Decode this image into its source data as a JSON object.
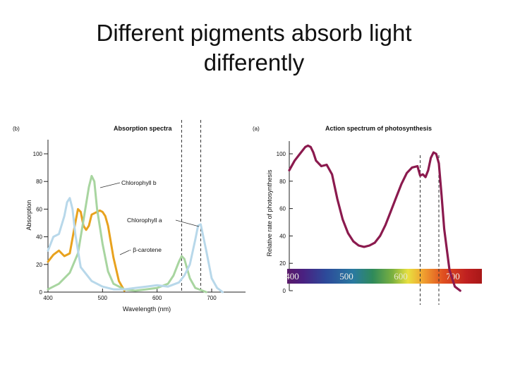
{
  "slide": {
    "title_line1": "Different pigments absorb light",
    "title_line2": "differently"
  },
  "colors": {
    "chl_b": "#a8d5a0",
    "chl_a": "#b8d8ea",
    "carotene": "#e8a21e",
    "action": "#8b1a4e",
    "axis": "#222222",
    "dashed": "#333333"
  },
  "chart_data": [
    {
      "type": "line",
      "panel_label": "(b)",
      "title": "Absorption spectra",
      "xlabel": "Wavelength (nm)",
      "ylabel": "Absorption",
      "xlim": [
        400,
        750
      ],
      "ylim": [
        0,
        100
      ],
      "xticks": [
        400,
        500,
        600,
        700
      ],
      "yticks": [
        0,
        20,
        40,
        60,
        80,
        100
      ],
      "grid": false,
      "dashed_vertical_lines": [
        645,
        680
      ],
      "series": [
        {
          "name": "Chlorophyll b",
          "color": "#a8d5a0",
          "x": [
            400,
            420,
            440,
            455,
            465,
            475,
            480,
            485,
            490,
            500,
            510,
            520,
            540,
            560,
            580,
            600,
            620,
            630,
            640,
            645,
            650,
            660,
            670,
            690
          ],
          "y": [
            2,
            6,
            14,
            28,
            52,
            76,
            84,
            80,
            60,
            35,
            15,
            6,
            2,
            1,
            2,
            3,
            6,
            12,
            22,
            26,
            24,
            10,
            3,
            0
          ]
        },
        {
          "name": "Chlorophyll a",
          "color": "#b8d8ea",
          "x": [
            400,
            410,
            420,
            430,
            435,
            440,
            445,
            450,
            460,
            480,
            500,
            520,
            540,
            560,
            580,
            600,
            620,
            640,
            650,
            660,
            670,
            675,
            680,
            690,
            700,
            710,
            720
          ],
          "y": [
            30,
            40,
            42,
            55,
            65,
            68,
            60,
            42,
            18,
            8,
            4,
            2,
            2,
            3,
            4,
            5,
            4,
            7,
            12,
            20,
            38,
            48,
            49,
            30,
            10,
            3,
            0
          ]
        },
        {
          "name": "β-carotene",
          "color": "#e8a21e",
          "x": [
            400,
            410,
            420,
            430,
            440,
            450,
            455,
            460,
            465,
            470,
            475,
            480,
            490,
            495,
            500,
            505,
            510,
            520,
            530,
            540
          ],
          "y": [
            22,
            27,
            30,
            26,
            28,
            50,
            60,
            58,
            48,
            45,
            48,
            56,
            58,
            59,
            58,
            55,
            48,
            25,
            8,
            1
          ]
        }
      ],
      "annotations": [
        {
          "text": "Chlorophyll b",
          "x": 528,
          "y": 80
        },
        {
          "text": "Chlorophyll a",
          "x": 542,
          "y": 52
        },
        {
          "text": "- β-carotene",
          "x": 537,
          "y": 30
        }
      ]
    },
    {
      "type": "line",
      "panel_label": "(a)",
      "title": "Action spectrum of photosynthesis",
      "xlabel": "",
      "ylabel": "Relative rate of photosynthesis",
      "xlim": [
        400,
        760
      ],
      "ylim": [
        0,
        100
      ],
      "yticks": [
        0,
        20,
        40,
        60,
        80,
        100
      ],
      "spectrum_bar_labels": [
        "400",
        "500",
        "600",
        "700"
      ],
      "dashed_vertical_lines": [
        645,
        680
      ],
      "grid": false,
      "series": [
        {
          "name": "",
          "color": "#8b1a4e",
          "x": [
            400,
            410,
            420,
            430,
            435,
            440,
            445,
            450,
            460,
            470,
            480,
            490,
            500,
            510,
            520,
            530,
            540,
            550,
            560,
            570,
            580,
            590,
            600,
            610,
            620,
            630,
            640,
            645,
            650,
            655,
            660,
            665,
            670,
            675,
            680,
            685,
            690,
            700,
            710,
            720
          ],
          "y": [
            88,
            95,
            100,
            105,
            106,
            105,
            101,
            95,
            91,
            92,
            85,
            67,
            52,
            42,
            36,
            33,
            32,
            33,
            35,
            40,
            48,
            58,
            68,
            78,
            86,
            90,
            91,
            84,
            85,
            83,
            88,
            97,
            101,
            100,
            93,
            70,
            45,
            15,
            3,
            0
          ]
        }
      ]
    }
  ]
}
